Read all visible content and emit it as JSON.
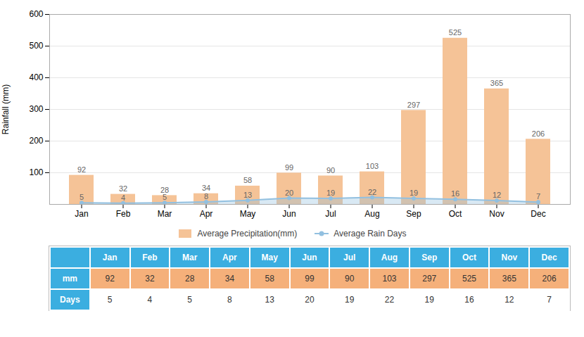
{
  "chart_data": {
    "type": "bar",
    "categories": [
      "Jan",
      "Feb",
      "Mar",
      "Apr",
      "May",
      "Jun",
      "Jul",
      "Aug",
      "Sep",
      "Oct",
      "Nov",
      "Dec"
    ],
    "series": [
      {
        "name": "Average Precipitation(mm)",
        "type": "bar",
        "color": "#F5C397",
        "values": [
          92,
          32,
          28,
          34,
          58,
          99,
          90,
          103,
          297,
          525,
          365,
          206
        ]
      },
      {
        "name": "Average Rain Days",
        "type": "line",
        "color": "#92C0E0",
        "marker": "circle",
        "values": [
          5,
          4,
          5,
          8,
          13,
          20,
          19,
          22,
          19,
          16,
          12,
          7
        ]
      }
    ],
    "ylabel": "Rainfall (mm)",
    "ylim": [
      0,
      600
    ],
    "yticks": [
      100,
      200,
      300,
      400,
      500,
      600
    ],
    "grid": true,
    "data_labels": true,
    "legend": "bottom",
    "table": {
      "row_labels": [
        "mm",
        "Days"
      ],
      "header_color": "#3BAEE0",
      "mm_color": "#F5B07A"
    }
  }
}
